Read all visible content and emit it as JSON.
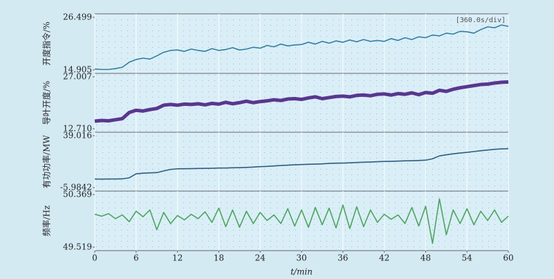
{
  "chart_data": [
    {
      "type": "line",
      "ylabel": "开度指令/%",
      "annotation": "[360.0s/div]",
      "xlim": [
        0,
        60
      ],
      "ylim": [
        14.905,
        26.499
      ],
      "yticks": [
        14.905,
        26.499
      ],
      "x": [
        0,
        1,
        2,
        3,
        4,
        5,
        6,
        7,
        8,
        9,
        10,
        11,
        12,
        13,
        14,
        15,
        16,
        17,
        18,
        19,
        20,
        21,
        22,
        23,
        24,
        25,
        26,
        27,
        28,
        29,
        30,
        31,
        32,
        33,
        34,
        35,
        36,
        37,
        38,
        39,
        40,
        41,
        42,
        43,
        44,
        45,
        46,
        47,
        48,
        49,
        50,
        51,
        52,
        53,
        54,
        55,
        56,
        57,
        58,
        59,
        60
      ],
      "series": [
        {
          "color": "#2f7ea6",
          "values": [
            15.1,
            15.0,
            15.0,
            15.2,
            15.5,
            16.6,
            17.2,
            17.5,
            17.3,
            18.0,
            18.8,
            19.2,
            19.3,
            19.0,
            19.5,
            19.2,
            19.0,
            19.6,
            19.2,
            19.4,
            19.8,
            19.3,
            19.5,
            19.9,
            19.7,
            20.3,
            20.0,
            20.6,
            20.2,
            20.4,
            20.5,
            21.0,
            20.6,
            21.2,
            20.8,
            21.3,
            21.0,
            21.5,
            21.1,
            21.6,
            21.2,
            21.4,
            21.2,
            21.8,
            21.4,
            22.0,
            21.6,
            22.2,
            22.0,
            22.6,
            22.4,
            23.0,
            22.8,
            23.4,
            23.3,
            23.0,
            23.8,
            24.4,
            24.2,
            24.8,
            24.5
          ]
        }
      ]
    },
    {
      "type": "line",
      "ylabel": "导叶开度/%",
      "xlim": [
        0,
        60
      ],
      "ylim": [
        12.71,
        27.007
      ],
      "yticks": [
        {
          "value": 12.71,
          "label": "12.710"
        },
        27.007
      ],
      "x": [
        0,
        1,
        2,
        3,
        4,
        5,
        6,
        7,
        8,
        9,
        10,
        11,
        12,
        13,
        14,
        15,
        16,
        17,
        18,
        19,
        20,
        21,
        22,
        23,
        24,
        25,
        26,
        27,
        28,
        29,
        30,
        31,
        32,
        33,
        34,
        35,
        36,
        37,
        38,
        39,
        40,
        41,
        42,
        43,
        44,
        45,
        46,
        47,
        48,
        49,
        50,
        51,
        52,
        53,
        54,
        55,
        56,
        57,
        58,
        59,
        60
      ],
      "series": [
        {
          "color": "#5a3591",
          "values": [
            14.8,
            15.0,
            14.9,
            15.2,
            15.5,
            17.2,
            17.8,
            17.6,
            18.0,
            18.3,
            19.2,
            19.4,
            19.2,
            19.5,
            19.4,
            19.6,
            19.3,
            19.7,
            19.5,
            20.0,
            19.6,
            19.9,
            20.3,
            19.9,
            20.2,
            20.4,
            20.7,
            20.5,
            20.9,
            21.0,
            20.8,
            21.2,
            21.5,
            21.0,
            21.3,
            21.6,
            21.7,
            21.5,
            21.9,
            22.0,
            21.8,
            22.2,
            22.3,
            22.0,
            22.4,
            22.2,
            22.6,
            22.1,
            22.7,
            22.5,
            23.3,
            23.0,
            23.6,
            24.0,
            24.3,
            24.6,
            24.9,
            25.0,
            25.3,
            25.5,
            25.6
          ]
        }
      ]
    },
    {
      "type": "line",
      "ylabel": "有功功率/MW",
      "xlim": [
        0,
        60
      ],
      "ylim": [
        -5.9842,
        39.016
      ],
      "yticks": [
        -5.9842,
        39.016
      ],
      "x": [
        0,
        1,
        2,
        3,
        4,
        5,
        6,
        7,
        8,
        9,
        10,
        11,
        12,
        13,
        14,
        15,
        16,
        17,
        18,
        19,
        20,
        21,
        22,
        23,
        24,
        25,
        26,
        27,
        28,
        29,
        30,
        31,
        32,
        33,
        34,
        35,
        36,
        37,
        38,
        39,
        40,
        41,
        42,
        43,
        44,
        45,
        46,
        47,
        48,
        49,
        50,
        51,
        52,
        53,
        54,
        55,
        56,
        57,
        58,
        59,
        60
      ],
      "series": [
        {
          "color": "#2b5d84",
          "values": [
            1.5,
            1.4,
            1.5,
            1.5,
            1.6,
            2.5,
            6.0,
            6.5,
            6.8,
            7.0,
            8.5,
            9.8,
            10.3,
            10.4,
            10.5,
            10.6,
            10.7,
            10.8,
            11.0,
            11.0,
            11.2,
            11.3,
            11.5,
            11.8,
            12.2,
            12.4,
            12.8,
            13.2,
            13.5,
            13.8,
            14.0,
            14.2,
            14.4,
            14.6,
            15.0,
            15.2,
            15.3,
            15.5,
            15.8,
            16.0,
            16.2,
            16.5,
            16.7,
            16.8,
            17.0,
            17.2,
            17.3,
            17.5,
            17.8,
            19.0,
            21.5,
            22.5,
            23.3,
            24.0,
            24.6,
            25.3,
            26.0,
            26.6,
            27.2,
            27.6,
            27.8
          ]
        }
      ]
    },
    {
      "type": "line",
      "ylabel": "频率/Hz",
      "xlabel": "t/min",
      "xlim": [
        0,
        60
      ],
      "xticks": [
        0,
        6,
        12,
        18,
        24,
        30,
        36,
        42,
        48,
        54,
        60
      ],
      "ylim": [
        49.519,
        50.369
      ],
      "yticks": [
        49.519,
        50.369
      ],
      "x": [
        0,
        1,
        2,
        3,
        4,
        5,
        6,
        7,
        8,
        9,
        10,
        11,
        12,
        13,
        14,
        15,
        16,
        17,
        18,
        19,
        20,
        21,
        22,
        23,
        24,
        25,
        26,
        27,
        28,
        29,
        30,
        31,
        32,
        33,
        34,
        35,
        36,
        37,
        38,
        39,
        40,
        41,
        42,
        43,
        44,
        45,
        46,
        47,
        48,
        49,
        50,
        51,
        52,
        53,
        54,
        55,
        56,
        57,
        58,
        59,
        60
      ],
      "series": [
        {
          "color": "#4aa65a",
          "values": [
            50.05,
            50.02,
            50.06,
            49.98,
            50.04,
            49.93,
            50.1,
            50.01,
            50.12,
            49.8,
            50.08,
            49.9,
            50.03,
            49.96,
            50.05,
            49.98,
            50.09,
            49.92,
            50.15,
            49.85,
            50.12,
            49.84,
            50.1,
            49.9,
            50.08,
            49.95,
            50.04,
            49.9,
            50.14,
            49.86,
            50.12,
            49.84,
            50.16,
            49.88,
            50.15,
            49.83,
            50.2,
            49.82,
            50.17,
            49.85,
            50.12,
            49.92,
            50.05,
            49.97,
            50.04,
            49.9,
            50.16,
            49.86,
            50.18,
            49.58,
            50.3,
            49.72,
            50.12,
            49.9,
            50.14,
            49.88,
            50.1,
            49.95,
            50.12,
            49.92,
            50.02
          ]
        }
      ]
    }
  ]
}
